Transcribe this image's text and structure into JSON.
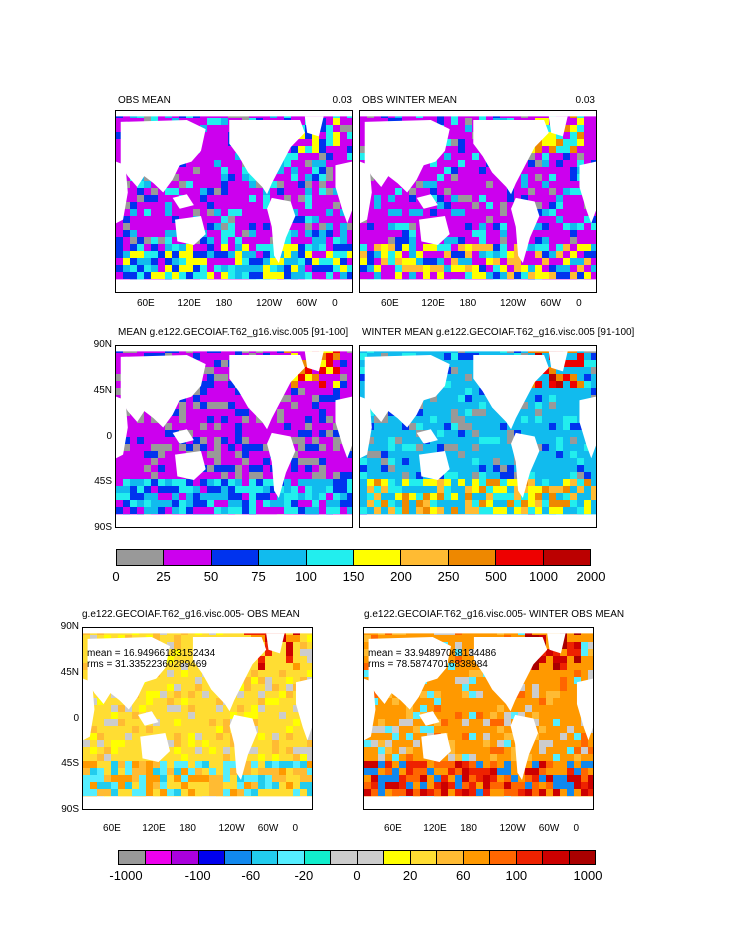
{
  "panels": {
    "p1": {
      "title": "OBS MEAN",
      "value": "0.03"
    },
    "p2": {
      "title": "OBS WINTER MEAN",
      "value": "0.03"
    },
    "p3": {
      "title": "MEAN g.e122.GECOIAF.T62_g16.visc.005 [91-100]"
    },
    "p4": {
      "title": "WINTER MEAN g.e122.GECOIAF.T62_g16.visc.005 [91-100]"
    },
    "p5": {
      "title": "g.e122.GECOIAF.T62_g16.visc.005- OBS MEAN",
      "mean": "mean = 16.94966183152434",
      "rms": "rms = 31.33522360289469"
    },
    "p6": {
      "title": "g.e122.GECOIAF.T62_g16.visc.005- WINTER OBS MEAN",
      "mean": "mean = 33.94897068134486",
      "rms": "rms = 78.58747016838984"
    }
  },
  "axes": {
    "lon": [
      "60E",
      "120E",
      "180",
      "120W",
      "60W",
      "0"
    ],
    "lat": [
      "90N",
      "45N",
      "0",
      "45S",
      "90S"
    ]
  },
  "colorbar_top": {
    "colors": [
      "#999999",
      "#cc00ee",
      "#0033ee",
      "#11bbee",
      "#22eeee",
      "#ffff00",
      "#ffbb33",
      "#ee8800",
      "#ee0000",
      "#bb0000"
    ],
    "labels": [
      "0",
      "25",
      "50",
      "75",
      "100",
      "150",
      "200",
      "250",
      "500",
      "1000",
      "2000"
    ]
  },
  "colorbar_bottom": {
    "colors": [
      "#999999",
      "#ee00ee",
      "#aa00dd",
      "#0000ee",
      "#1188ee",
      "#22ccee",
      "#55eeff",
      "#11eecc",
      "#cccccc",
      "#cccccc",
      "#ffff00",
      "#ffdd33",
      "#ffbb33",
      "#ff9900",
      "#ff6600",
      "#ee2200",
      "#cc0000",
      "#aa0000"
    ],
    "labels": [
      {
        "text": "-1000",
        "i": 0
      },
      {
        "text": "-100",
        "i": 3
      },
      {
        "text": "-60",
        "i": 5
      },
      {
        "text": "-20",
        "i": 7
      },
      {
        "text": "0",
        "i": 9
      },
      {
        "text": "20",
        "i": 11
      },
      {
        "text": "60",
        "i": 13
      },
      {
        "text": "100",
        "i": 15
      },
      {
        "text": "1000",
        "i": 18
      }
    ]
  }
}
